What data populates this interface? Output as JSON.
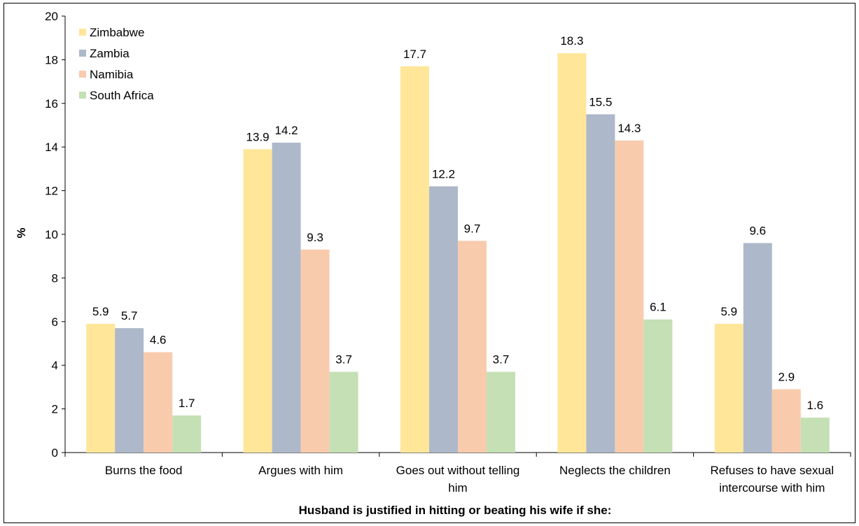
{
  "chart_data": {
    "type": "bar",
    "title": "",
    "xlabel": "Husband is justified in hitting or beating his wife if she:",
    "ylabel": "%",
    "ylim": [
      0,
      20
    ],
    "yticks": [
      "0",
      "2",
      "4",
      "6",
      "8",
      "10",
      "12",
      "14",
      "16",
      "18",
      "20"
    ],
    "grid": false,
    "legend_position": "top-left",
    "categories": [
      [
        "Burns the food"
      ],
      [
        "Argues with him"
      ],
      [
        "Goes out without telling",
        "him"
      ],
      [
        "Neglects the children"
      ],
      [
        "Refuses to have sexual",
        "intercourse with him"
      ]
    ],
    "series": [
      {
        "name": "Zimbabwe",
        "color": "#FFE699",
        "values": [
          5.9,
          13.9,
          17.7,
          18.3,
          5.9
        ]
      },
      {
        "name": "Zambia",
        "color": "#ADB9CA",
        "values": [
          5.7,
          14.2,
          12.2,
          15.5,
          9.6
        ]
      },
      {
        "name": "Namibia",
        "color": "#F8CBAD",
        "values": [
          4.6,
          9.3,
          9.7,
          14.3,
          2.9
        ]
      },
      {
        "name": "South Africa",
        "color": "#C5E0B4",
        "values": [
          1.7,
          3.7,
          3.7,
          6.1,
          1.6
        ]
      }
    ]
  }
}
